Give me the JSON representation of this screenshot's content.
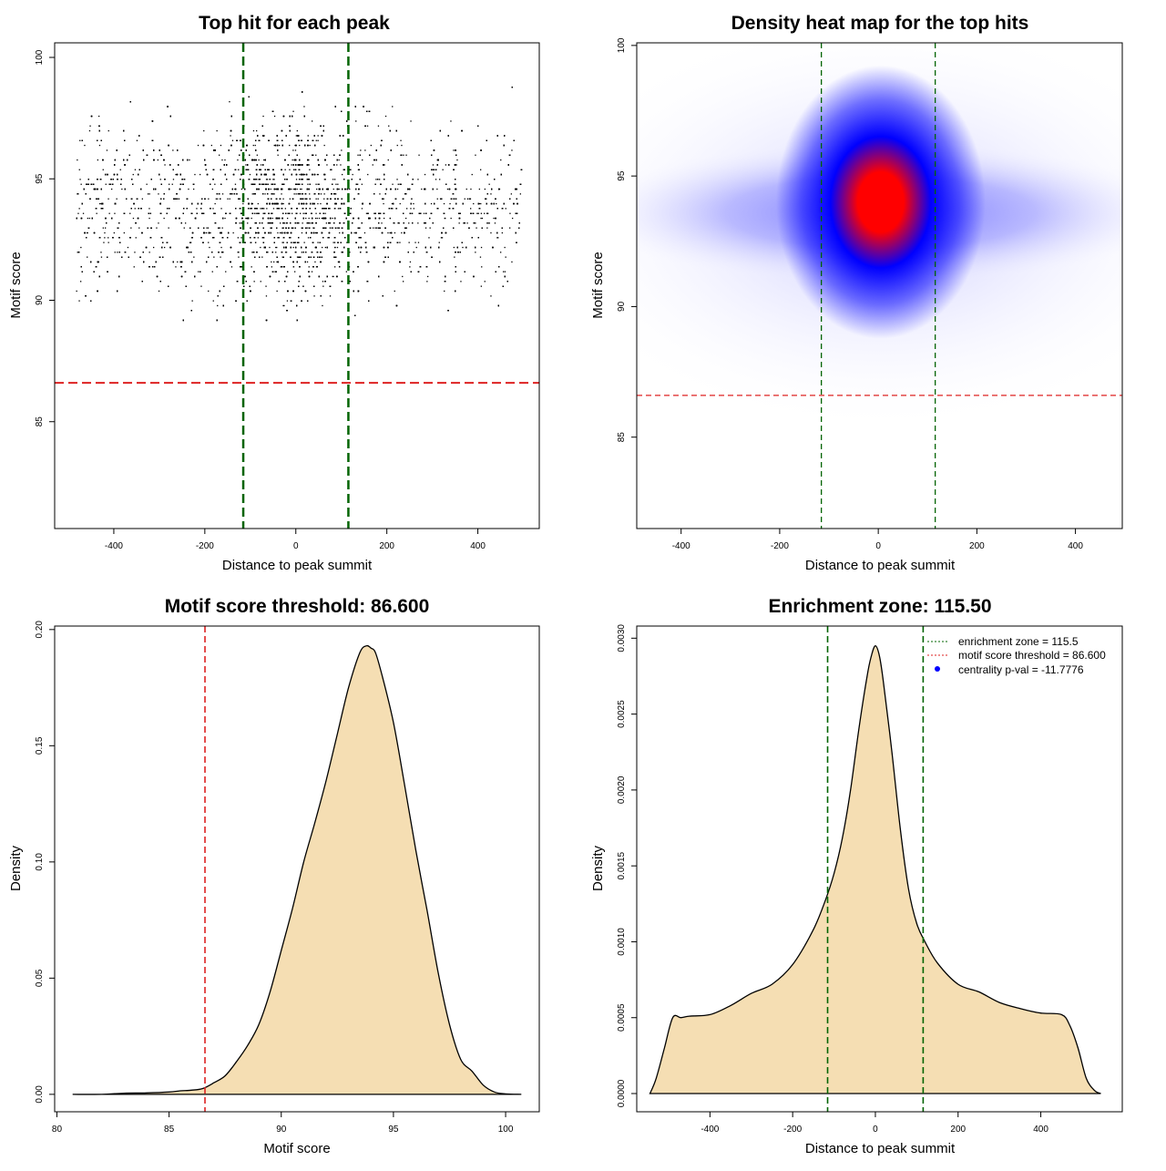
{
  "figure": {
    "colors": {
      "points": "#000000",
      "threshold_line": "#dd2222",
      "zone_line": "#006400",
      "density_fill": "#f5deb3",
      "density_outline": "#000000",
      "heat_low": "#ffffff",
      "heat_mid": "#0000ff",
      "heat_high": "#ff0000"
    }
  },
  "chart_data": [
    {
      "id": "scatter",
      "type": "scatter",
      "title": "Top hit for each peak",
      "xlabel": "Distance to peak summit",
      "ylabel": "Motif score",
      "xlim": [
        -530,
        535
      ],
      "ylim": [
        80.6,
        100.6
      ],
      "xticks": [
        -400,
        -200,
        0,
        200,
        400
      ],
      "yticks": [
        85,
        90,
        95,
        100
      ],
      "grid": false,
      "x_range_of_points": [
        -485,
        495
      ],
      "score_center": 93.8,
      "score_sd": 2.4,
      "threshold": 86.6,
      "enrichment_zone": [
        -115.5,
        115.5
      ]
    },
    {
      "id": "heatmap",
      "type": "heatmap",
      "title": "Density heat map for the top hits",
      "xlabel": "Distance to peak summit",
      "ylabel": "Motif score",
      "xlim": [
        -490,
        495
      ],
      "ylim": [
        81.5,
        100.1
      ],
      "xticks": [
        -400,
        -200,
        0,
        200,
        400
      ],
      "yticks": [
        85,
        90,
        95,
        100
      ],
      "hotspot": {
        "x": 5,
        "y": 94.0
      },
      "threshold": 86.6,
      "enrichment_zone": [
        -115.5,
        115.5
      ]
    },
    {
      "id": "score-density",
      "type": "area",
      "title": "Motif score threshold: 86.600",
      "xlabel": "Motif score",
      "ylabel": "Density",
      "xlim": [
        79.9,
        101.5
      ],
      "ylim": [
        -0.0075,
        0.2015
      ],
      "xticks": [
        80,
        85,
        90,
        95,
        100
      ],
      "yticks": [
        0,
        0.05,
        0.1,
        0.15,
        0.2
      ],
      "ytick_labels": [
        "0.00",
        "0.05",
        "0.10",
        "0.15",
        "0.20"
      ],
      "threshold": 86.6,
      "x": [
        80.7,
        82,
        83,
        84,
        85,
        85.5,
        86,
        86.5,
        87,
        87.5,
        88,
        88.5,
        89,
        89.5,
        90,
        90.5,
        91,
        91.5,
        92,
        92.5,
        93,
        93.5,
        93.8,
        94,
        94.2,
        94.5,
        95,
        95.5,
        96,
        96.5,
        97,
        97.5,
        98,
        98.5,
        99,
        99.5,
        100,
        100.7
      ],
      "y": [
        0.0,
        0.0,
        0.0005,
        0.0006,
        0.001,
        0.0015,
        0.0018,
        0.0025,
        0.005,
        0.008,
        0.014,
        0.021,
        0.03,
        0.044,
        0.062,
        0.08,
        0.1,
        0.117,
        0.135,
        0.155,
        0.175,
        0.19,
        0.193,
        0.192,
        0.19,
        0.18,
        0.16,
        0.133,
        0.105,
        0.079,
        0.052,
        0.03,
        0.015,
        0.01,
        0.004,
        0.001,
        0.0002,
        0.0
      ]
    },
    {
      "id": "distance-density",
      "type": "area",
      "title": "Enrichment zone: 115.50",
      "xlabel": "Distance to peak summit",
      "ylabel": "Density",
      "xlim": [
        -577,
        597
      ],
      "ylim": [
        -0.00012,
        0.00308
      ],
      "xticks": [
        -400,
        -200,
        0,
        200,
        400
      ],
      "yticks": [
        0,
        0.0005,
        0.001,
        0.0015,
        0.002,
        0.0025,
        0.003
      ],
      "ytick_labels": [
        "0.0000",
        "0.0005",
        "0.0010",
        "0.0015",
        "0.0020",
        "0.0025",
        "0.0030"
      ],
      "enrichment_zone": [
        -115.5,
        115.5
      ],
      "x": [
        -545,
        -530,
        -510,
        -490,
        -470,
        -450,
        -400,
        -350,
        -300,
        -250,
        -200,
        -150,
        -120,
        -100,
        -80,
        -60,
        -40,
        -20,
        -10,
        0,
        10,
        20,
        40,
        60,
        80,
        100,
        120,
        150,
        200,
        250,
        300,
        350,
        400,
        450,
        470,
        490,
        510,
        530,
        545
      ],
      "y": [
        0.0,
        0.0001,
        0.0003,
        0.0005,
        0.0005,
        0.00051,
        0.00052,
        0.00058,
        0.00066,
        0.00072,
        0.00085,
        0.00108,
        0.00128,
        0.00145,
        0.00168,
        0.002,
        0.0024,
        0.00275,
        0.00288,
        0.00295,
        0.00288,
        0.0027,
        0.00225,
        0.00175,
        0.00135,
        0.00112,
        0.001,
        0.00086,
        0.00072,
        0.00067,
        0.0006,
        0.00056,
        0.00053,
        0.00052,
        0.00045,
        0.0003,
        0.0001,
        2e-05,
        0.0
      ],
      "legend": {
        "position": "top-right",
        "entries": [
          {
            "label": "enrichment zone = 115.5",
            "style": "dotted-line",
            "color": "#006400"
          },
          {
            "label": "motif score threshold = 86.600",
            "style": "dotted-line",
            "color": "#dd2222"
          },
          {
            "label": "centrality p-val = -11.7776",
            "style": "point",
            "color": "#0000ff"
          }
        ]
      }
    }
  ]
}
